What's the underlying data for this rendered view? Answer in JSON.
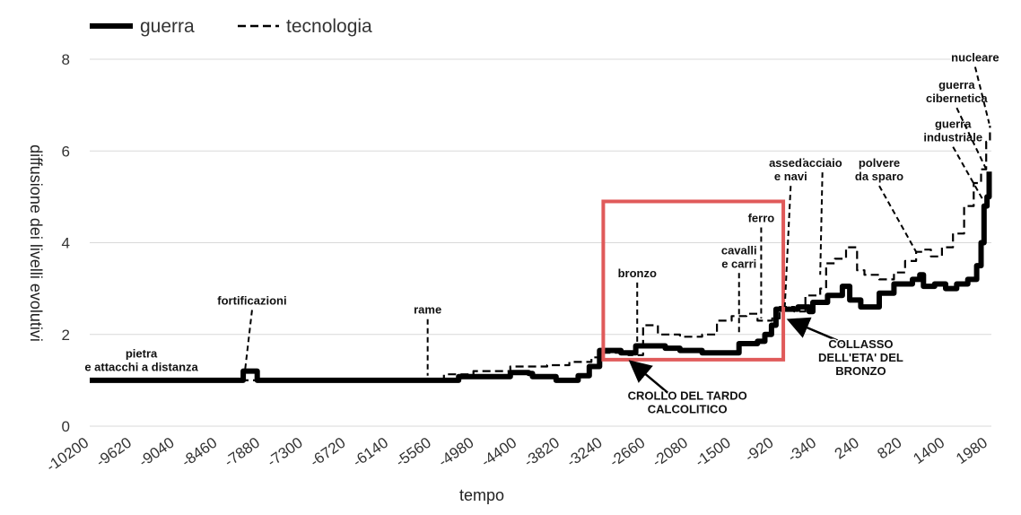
{
  "chart_data": {
    "type": "line",
    "xlabel": "tempo",
    "ylabel": "diffusione dei livelli evolutivi",
    "xlim": [
      -10200,
      2020
    ],
    "ylim": [
      0,
      8
    ],
    "y_ticks": [
      "0",
      "2",
      "4",
      "6",
      "8"
    ],
    "x_ticks": [
      "-10200",
      "-9620",
      "-9040",
      "-8460",
      "-7880",
      "-7300",
      "-6720",
      "-6140",
      "-5560",
      "-4980",
      "-4400",
      "-3820",
      "-3240",
      "-2660",
      "-2080",
      "-1500",
      "-920",
      "-340",
      "240",
      "820",
      "1400",
      "1980"
    ],
    "grid": true,
    "legend_position": "top-left",
    "series": [
      {
        "name": "guerra",
        "style": "solid-thick",
        "color": "#000000",
        "points": [
          [
            -10200,
            1.0
          ],
          [
            -8140,
            1.0
          ],
          [
            -8120,
            1.2
          ],
          [
            -7950,
            1.2
          ],
          [
            -7930,
            1.0
          ],
          [
            -5250,
            1.0
          ],
          [
            -5200,
            1.08
          ],
          [
            -4550,
            1.08
          ],
          [
            -4500,
            1.17
          ],
          [
            -4250,
            1.15
          ],
          [
            -4200,
            1.08
          ],
          [
            -3900,
            1.08
          ],
          [
            -3880,
            1.0
          ],
          [
            -3600,
            1.0
          ],
          [
            -3580,
            1.1
          ],
          [
            -3450,
            1.1
          ],
          [
            -3430,
            1.3
          ],
          [
            -3300,
            1.3
          ],
          [
            -3290,
            1.65
          ],
          [
            -3000,
            1.6
          ],
          [
            -2800,
            1.75
          ],
          [
            -2400,
            1.7
          ],
          [
            -2200,
            1.65
          ],
          [
            -1900,
            1.6
          ],
          [
            -1700,
            1.6
          ],
          [
            -1500,
            1.6
          ],
          [
            -1400,
            1.8
          ],
          [
            -1150,
            1.85
          ],
          [
            -1050,
            2.0
          ],
          [
            -960,
            2.2
          ],
          [
            -900,
            2.55
          ],
          [
            -600,
            2.6
          ],
          [
            -450,
            2.5
          ],
          [
            -400,
            2.7
          ],
          [
            -200,
            2.85
          ],
          [
            0,
            3.05
          ],
          [
            100,
            2.75
          ],
          [
            250,
            2.6
          ],
          [
            450,
            2.6
          ],
          [
            500,
            2.9
          ],
          [
            700,
            3.1
          ],
          [
            950,
            3.2
          ],
          [
            1050,
            3.3
          ],
          [
            1100,
            3.05
          ],
          [
            1250,
            3.1
          ],
          [
            1400,
            3.0
          ],
          [
            1550,
            3.1
          ],
          [
            1700,
            3.2
          ],
          [
            1820,
            3.5
          ],
          [
            1880,
            4.0
          ],
          [
            1920,
            4.8
          ],
          [
            1960,
            5.0
          ],
          [
            1990,
            5.55
          ]
        ]
      },
      {
        "name": "tecnologia",
        "style": "dashed",
        "color": "#000000",
        "points": [
          [
            -10200,
            1.0
          ],
          [
            -5560,
            1.0
          ],
          [
            -5400,
            1.13
          ],
          [
            -5000,
            1.2
          ],
          [
            -4500,
            1.3
          ],
          [
            -4000,
            1.33
          ],
          [
            -3700,
            1.4
          ],
          [
            -3400,
            1.5
          ],
          [
            -3240,
            1.6
          ],
          [
            -3100,
            1.6
          ],
          [
            -2900,
            1.55
          ],
          [
            -2700,
            2.2
          ],
          [
            -2500,
            2.0
          ],
          [
            -2200,
            1.95
          ],
          [
            -1900,
            2.0
          ],
          [
            -1700,
            2.3
          ],
          [
            -1500,
            2.4
          ],
          [
            -1300,
            2.45
          ],
          [
            -1150,
            2.3
          ],
          [
            -950,
            2.35
          ],
          [
            -850,
            2.6
          ],
          [
            -650,
            2.5
          ],
          [
            -500,
            2.85
          ],
          [
            -300,
            3.0
          ],
          [
            -220,
            3.55
          ],
          [
            -100,
            3.65
          ],
          [
            50,
            3.9
          ],
          [
            200,
            3.4
          ],
          [
            300,
            3.3
          ],
          [
            500,
            3.2
          ],
          [
            700,
            3.35
          ],
          [
            850,
            3.6
          ],
          [
            1000,
            3.8
          ],
          [
            1100,
            3.85
          ],
          [
            1200,
            3.7
          ],
          [
            1350,
            3.9
          ],
          [
            1500,
            4.2
          ],
          [
            1650,
            4.8
          ],
          [
            1780,
            5.3
          ],
          [
            1880,
            5.6
          ],
          [
            1950,
            6.2
          ],
          [
            2000,
            6.55
          ]
        ]
      }
    ],
    "annotations": [
      {
        "lines": [
          "pietra",
          "e attacchi a distanza"
        ],
        "x": -9500,
        "y": 1.5,
        "ax": -9500,
        "ay": 1.5,
        "leader": false
      },
      {
        "lines": [
          "fortificazioni"
        ],
        "x": -8000,
        "y": 2.65,
        "ax": -8100,
        "ay": 1.15,
        "leader": true
      },
      {
        "lines": [
          "rame"
        ],
        "x": -5620,
        "y": 2.45,
        "ax": -5620,
        "ay": 1.1,
        "leader": true
      },
      {
        "lines": [
          "bronzo"
        ],
        "x": -2780,
        "y": 3.25,
        "ax": -2780,
        "ay": 1.55,
        "leader": true
      },
      {
        "lines": [
          "cavalli",
          "e carri"
        ],
        "x": -1400,
        "y": 3.75,
        "ax": -1400,
        "ay": 2.0,
        "leader": true
      },
      {
        "lines": [
          "ferro"
        ],
        "x": -1100,
        "y": 4.45,
        "ax": -1100,
        "ay": 2.35,
        "leader": true
      },
      {
        "lines": [
          "assedio",
          "e navi"
        ],
        "x": -700,
        "y": 5.65,
        "ax": -780,
        "ay": 2.6,
        "leader": true
      },
      {
        "lines": [
          "acciaio"
        ],
        "x": -270,
        "y": 5.65,
        "ax": -300,
        "ay": 3.3,
        "leader": true
      },
      {
        "lines": [
          "polvere",
          "da sparo"
        ],
        "x": 500,
        "y": 5.65,
        "ax": 1000,
        "ay": 3.8,
        "leader": true
      },
      {
        "lines": [
          "guerra",
          "industriale"
        ],
        "x": 1500,
        "y": 6.5,
        "ax": 1900,
        "ay": 4.95,
        "leader": true
      },
      {
        "lines": [
          "guerra",
          "cibernetica"
        ],
        "x": 1550,
        "y": 7.35,
        "ax": 1950,
        "ay": 5.6,
        "leader": true
      },
      {
        "lines": [
          "nucleare"
        ],
        "x": 1800,
        "y": 7.95,
        "ax": 1990,
        "ay": 6.6,
        "leader": true
      },
      {
        "lines": [
          "CROLLO DEL TARDO",
          "CALCOLITICO"
        ],
        "x": -2100,
        "y": 0.58,
        "ax": -2850,
        "ay": 1.38,
        "leader": true,
        "arrow": true
      },
      {
        "lines": [
          "COLLASSO",
          "DELL'ETA' DEL",
          "BRONZO"
        ],
        "x": 250,
        "y": 1.7,
        "ax": -700,
        "ay": 2.3,
        "leader": true,
        "arrow": true
      }
    ],
    "highlight_box": {
      "x0": -3240,
      "x1": -800,
      "y0": 1.45,
      "y1": 4.9,
      "color": "#e05a5a"
    }
  }
}
